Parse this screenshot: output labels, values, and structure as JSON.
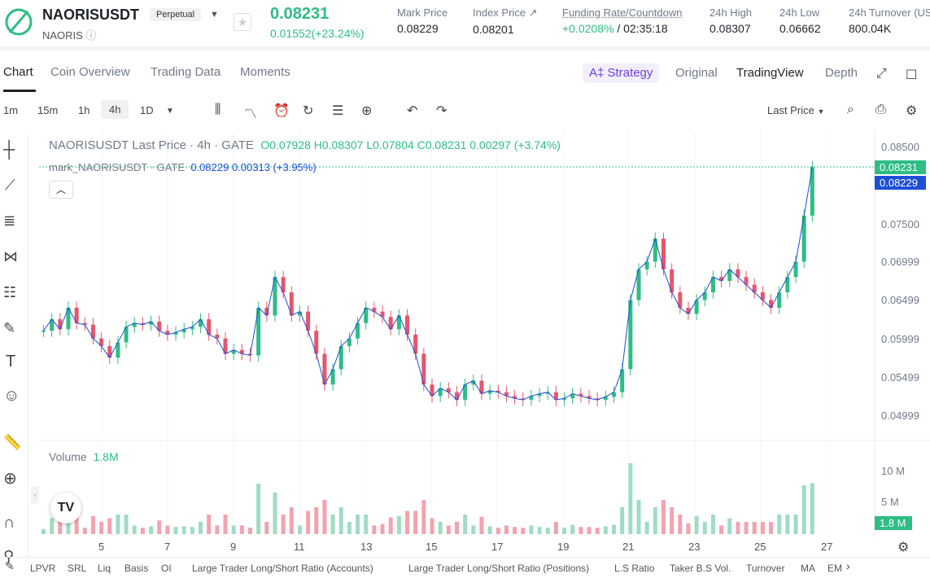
{
  "header": {
    "symbol": "NAORISUSDT",
    "contract_type": "Perpetual",
    "base": "NAORIS",
    "last_price": "0.08231",
    "change": "0.01552(+23.24%)",
    "stats": [
      {
        "label": "Mark Price",
        "value": "0.08229"
      },
      {
        "label": "Index Price ↗",
        "value": "0.08201"
      },
      {
        "label": "Funding Rate/Countdown",
        "value": "+0.0208%",
        "value2": " / 02:35:18"
      },
      {
        "label": "24h High",
        "value": "0.08307"
      },
      {
        "label": "24h Low",
        "value": "0.06662"
      },
      {
        "label": "24h Turnover (US",
        "value": "800.04K"
      }
    ]
  },
  "tabs": [
    "Chart",
    "Coin Overview",
    "Trading Data",
    "Moments"
  ],
  "view_tabs": {
    "strategy": "A‡ Strategy",
    "original": "Original",
    "tradingview": "TradingView",
    "depth": "Depth"
  },
  "intervals": [
    "1m",
    "15m",
    "1h",
    "4h",
    "1D"
  ],
  "selected_interval": "4h",
  "price_type": "Last Price",
  "legend": {
    "title": "NAORISUSDT Last Price · 4h · GATE",
    "ohlc": "O0.07928 H0.08307 L0.07804 C0.08231 0.00297 (+3.74%)",
    "mark_label": "mark_NAORISUSDT · GATE",
    "mark_values": "0.08229 0.00313 (+3.95%)"
  },
  "y_axis": [
    "0.08500",
    "0.07500",
    "0.06999",
    "0.06499",
    "0.05999",
    "0.05499",
    "0.04999"
  ],
  "last_badge": "0.08231",
  "mark_badge": "0.08229",
  "volume": {
    "label": "Volume",
    "value": "1.8M",
    "ticks": [
      "10 M",
      "5 M"
    ],
    "badge": "1.8 M"
  },
  "x_axis": [
    "5",
    "7",
    "9",
    "11",
    "13",
    "15",
    "17",
    "19",
    "21",
    "23",
    "25",
    "27"
  ],
  "indicators": [
    "LPVR",
    "SRL",
    "Liq",
    "Basis",
    "OI",
    "Large Trader Long/Short Ratio (Accounts)",
    "Large Trader Long/Short Ratio (Positions)",
    "L.S Ratio",
    "Taker B.S Vol.",
    "Turnover",
    "MA",
    "EM"
  ],
  "colors": {
    "up": "#2ebd85",
    "down": "#e6566b",
    "mark": "#1d4fd8"
  },
  "chart_data": {
    "type": "candlestick",
    "close": [
      0.061,
      0.0625,
      0.0612,
      0.064,
      0.062,
      0.0618,
      0.06,
      0.059,
      0.0575,
      0.0595,
      0.0615,
      0.062,
      0.0618,
      0.0622,
      0.061,
      0.0605,
      0.0608,
      0.0612,
      0.0615,
      0.0625,
      0.0605,
      0.06,
      0.058,
      0.0585,
      0.058,
      0.0578,
      0.064,
      0.063,
      0.068,
      0.066,
      0.063,
      0.0635,
      0.061,
      0.058,
      0.054,
      0.056,
      0.059,
      0.06,
      0.062,
      0.064,
      0.0635,
      0.0628,
      0.0612,
      0.063,
      0.0605,
      0.058,
      0.054,
      0.0525,
      0.0535,
      0.053,
      0.052,
      0.054,
      0.0545,
      0.0528,
      0.0532,
      0.053,
      0.0525,
      0.0522,
      0.052,
      0.0525,
      0.0528,
      0.053,
      0.052,
      0.0522,
      0.0528,
      0.0525,
      0.0522,
      0.052,
      0.0524,
      0.053,
      0.056,
      0.065,
      0.069,
      0.07,
      0.073,
      0.069,
      0.066,
      0.064,
      0.0632,
      0.065,
      0.066,
      0.068,
      0.0675,
      0.069,
      0.068,
      0.067,
      0.066,
      0.065,
      0.064,
      0.066,
      0.068,
      0.07,
      0.076,
      0.0823
    ],
    "volume_ticks": [
      "10 M",
      "5 M"
    ]
  }
}
